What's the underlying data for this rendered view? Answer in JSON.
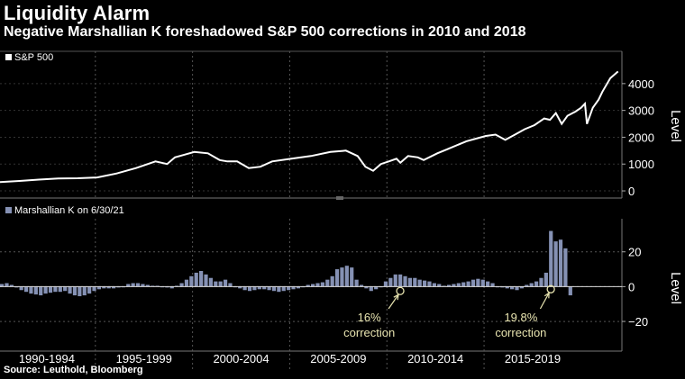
{
  "header": {
    "title": "Liquidity Alarm",
    "subtitle": "Negative Marshallian K foreshadowed S&P 500 corrections in 2010 and 2018"
  },
  "footer": {
    "source": "Source: Leuthold, Bloomberg"
  },
  "colors": {
    "background": "#000000",
    "line": "#ffffff",
    "bars": "#8591b4",
    "annotation": "#e8e4b0",
    "grid": "#555555"
  },
  "chart_data": [
    {
      "type": "line",
      "legend": "S&P 500",
      "ylabel": "Level",
      "ylim": [
        -200,
        4700
      ],
      "yticks": [
        0,
        1000,
        2000,
        3000,
        4000
      ],
      "x": [
        1990.0,
        1991.0,
        1992.0,
        1993.0,
        1994.0,
        1995.0,
        1996.0,
        1997.0,
        1998.0,
        1998.6,
        1999.0,
        1999.5,
        2000.0,
        2000.7,
        2001.3,
        2001.7,
        2002.2,
        2002.8,
        2003.4,
        2004.0,
        2005.0,
        2006.0,
        2007.0,
        2007.8,
        2008.4,
        2008.8,
        2009.2,
        2009.6,
        2010.0,
        2010.4,
        2010.6,
        2011.0,
        2011.5,
        2011.8,
        2012.5,
        2013.0,
        2014.0,
        2015.0,
        2015.5,
        2016.0,
        2016.5,
        2017.0,
        2017.5,
        2018.0,
        2018.3,
        2018.6,
        2018.9,
        2019.2,
        2019.6,
        2019.9,
        2020.1,
        2020.2,
        2020.5,
        2020.8,
        2021.0,
        2021.4,
        2021.8
      ],
      "y": [
        330,
        370,
        420,
        460,
        470,
        500,
        650,
        850,
        1100,
        1000,
        1250,
        1350,
        1450,
        1400,
        1150,
        1100,
        1100,
        850,
        900,
        1100,
        1200,
        1300,
        1450,
        1500,
        1300,
        900,
        750,
        1000,
        1100,
        1200,
        1050,
        1300,
        1250,
        1150,
        1400,
        1550,
        1850,
        2050,
        2100,
        1900,
        2100,
        2300,
        2450,
        2700,
        2650,
        2900,
        2500,
        2800,
        2950,
        3100,
        3250,
        2500,
        3100,
        3400,
        3700,
        4200,
        4450
      ]
    },
    {
      "type": "bar",
      "legend": "Marshallian K on 6/30/21",
      "ylabel": "Level",
      "ylim": [
        -36,
        39
      ],
      "yticks": [
        -20,
        0,
        20
      ],
      "x_start": 1990.0,
      "x_step": 0.25,
      "values": [
        1.5,
        2,
        1,
        -0.5,
        -2,
        -3,
        -4,
        -4.5,
        -5,
        -4,
        -3.5,
        -3,
        -3,
        -2.5,
        -4,
        -5,
        -5.5,
        -5,
        -4,
        -2.5,
        -1.5,
        -1,
        -1,
        -1,
        -0.5,
        0,
        1.5,
        2,
        2,
        1.5,
        1,
        0.5,
        0.5,
        0,
        -0.5,
        -1,
        0.5,
        2,
        4,
        6,
        8,
        9,
        7,
        5,
        3,
        3,
        4,
        2,
        0,
        -1,
        -2,
        -2.5,
        -2,
        -1.5,
        -1.5,
        -2,
        -2.5,
        -3,
        -2.5,
        -2,
        -1.5,
        -1,
        0,
        1,
        1.5,
        2,
        2.5,
        4,
        6,
        10,
        11,
        12,
        11,
        4,
        1,
        -1,
        -2.5,
        -1.5,
        0,
        3,
        5,
        7,
        7,
        6,
        5,
        5,
        4,
        3.5,
        3,
        2,
        1.5,
        0.5,
        1,
        1.5,
        2,
        2.5,
        3,
        4,
        4.5,
        4,
        3,
        2,
        0,
        -0.5,
        -1,
        -1.5,
        -2,
        -1,
        1,
        2,
        3,
        5,
        8,
        32,
        26,
        27,
        22,
        -5
      ]
    }
  ],
  "x_axis": {
    "labels": [
      "1990-1994",
      "1995-1999",
      "2000-2004",
      "2005-2009",
      "2010-2014",
      "2015-2019"
    ]
  },
  "annotations": [
    {
      "text_line1": "16%",
      "text_line2": "correction",
      "x": 2010.5,
      "y": -2.5
    },
    {
      "text_line1": "19.8%",
      "text_line2": "correction",
      "x": 2018.25,
      "y": -1.5
    }
  ]
}
